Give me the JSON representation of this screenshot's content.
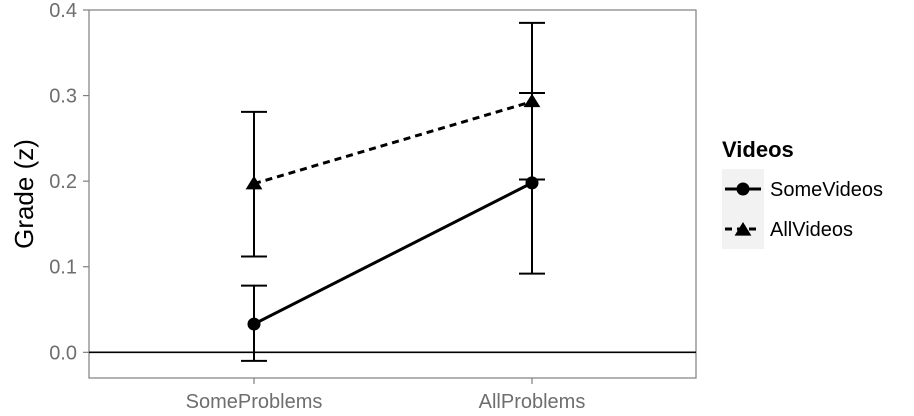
{
  "chart_data": {
    "type": "line",
    "categories": [
      "SomeProblems",
      "AllProblems"
    ],
    "ylabel": "Grade (z)",
    "xlabel": "",
    "ylim": [
      -0.03,
      0.4
    ],
    "yticks": [
      0.0,
      0.1,
      0.2,
      0.3,
      0.4
    ],
    "ytick_labels": [
      "0.0",
      "0.1",
      "0.2",
      "0.3",
      "0.4"
    ],
    "reference_line_y": 0,
    "grid": false,
    "legend": {
      "title": "Videos",
      "position": "right"
    },
    "series": [
      {
        "name": "SomeVideos",
        "marker": "circle",
        "line_style": "solid",
        "values": [
          0.033,
          0.198
        ],
        "error_low": [
          -0.01,
          0.092
        ],
        "error_high": [
          0.078,
          0.303
        ]
      },
      {
        "name": "AllVideos",
        "marker": "triangle",
        "line_style": "dashed",
        "values": [
          0.197,
          0.293
        ],
        "error_low": [
          0.112,
          0.202
        ],
        "error_high": [
          0.281,
          0.385
        ]
      }
    ]
  },
  "colors": {
    "line": "#000000",
    "panel_border": "#7f7f7f",
    "tick_text": "#6e6e6e",
    "legend_key_bg": "#f2f2f2"
  }
}
